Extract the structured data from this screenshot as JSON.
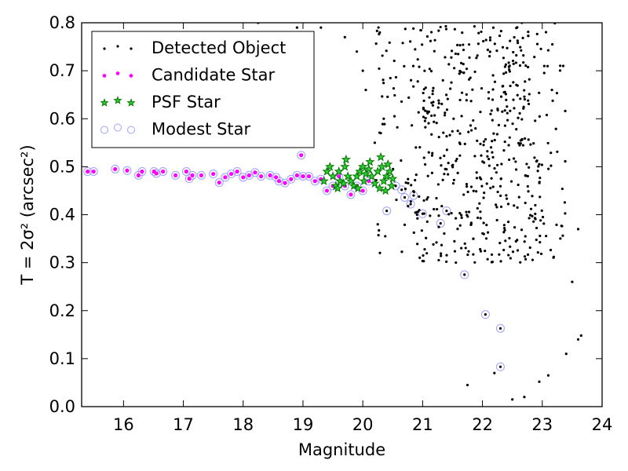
{
  "chart_data": {
    "type": "scatter",
    "xlabel": "Magnitude",
    "ylabel": "T = 2σ² (arcsec²)",
    "xlim": [
      15.3,
      24.0
    ],
    "ylim": [
      0.0,
      0.8
    ],
    "x_ticks": [
      16,
      17,
      18,
      19,
      20,
      21,
      22,
      23,
      24
    ],
    "y_ticks": [
      0.0,
      0.1,
      0.2,
      0.3,
      0.4,
      0.5,
      0.6,
      0.7,
      0.8
    ],
    "grid": false,
    "legend_position": "top-left",
    "colors": {
      "detected": "#000000",
      "candidate": "#ff00ff",
      "psf_edge": "#007700",
      "psf_fill": "#33cc33",
      "modest": "#9f9fff"
    },
    "series": [
      {
        "name": "Detected Object",
        "marker": "dot",
        "points": [
          [
            15.4,
            0.49
          ],
          [
            15.5,
            0.49
          ],
          [
            15.86,
            0.495
          ],
          [
            16.06,
            0.492
          ],
          [
            16.25,
            0.482
          ],
          [
            16.31,
            0.49
          ],
          [
            16.51,
            0.49
          ],
          [
            16.55,
            0.486
          ],
          [
            16.66,
            0.49
          ],
          [
            16.87,
            0.482
          ],
          [
            17.05,
            0.49
          ],
          [
            17.1,
            0.475
          ],
          [
            17.15,
            0.482
          ],
          [
            17.3,
            0.482
          ],
          [
            17.5,
            0.485
          ],
          [
            17.6,
            0.467
          ],
          [
            17.7,
            0.478
          ],
          [
            17.8,
            0.485
          ],
          [
            17.9,
            0.49
          ],
          [
            18.0,
            0.478
          ],
          [
            18.1,
            0.482
          ],
          [
            18.2,
            0.488
          ],
          [
            18.3,
            0.48
          ],
          [
            18.45,
            0.482
          ],
          [
            18.55,
            0.478
          ],
          [
            18.6,
            0.47
          ],
          [
            18.7,
            0.466
          ],
          [
            18.8,
            0.474
          ],
          [
            18.9,
            0.482
          ],
          [
            18.97,
            0.524
          ],
          [
            19.0,
            0.48
          ],
          [
            19.1,
            0.48
          ],
          [
            19.2,
            0.47
          ],
          [
            19.3,
            0.474
          ],
          [
            19.4,
            0.45
          ],
          [
            19.5,
            0.46
          ],
          [
            19.6,
            0.48
          ],
          [
            19.7,
            0.46
          ],
          [
            19.8,
            0.442
          ],
          [
            19.9,
            0.46
          ],
          [
            20.0,
            0.45
          ],
          [
            20.1,
            0.47
          ],
          [
            20.25,
            0.38
          ],
          [
            20.4,
            0.408
          ],
          [
            20.55,
            0.46
          ],
          [
            20.65,
            0.452
          ],
          [
            20.7,
            0.436
          ],
          [
            20.8,
            0.422
          ],
          [
            20.85,
            0.44
          ],
          [
            21.0,
            0.402
          ],
          [
            21.27,
            0.398
          ],
          [
            21.3,
            0.382
          ],
          [
            21.4,
            0.408
          ],
          [
            21.7,
            0.275
          ],
          [
            22.05,
            0.192
          ],
          [
            22.3,
            0.163
          ],
          [
            22.3,
            0.083
          ],
          [
            21.75,
            0.045
          ],
          [
            22.2,
            0.07
          ],
          [
            22.5,
            0.015
          ],
          [
            22.7,
            0.02
          ],
          [
            22.95,
            0.052
          ],
          [
            23.1,
            0.065
          ],
          [
            23.6,
            0.14
          ],
          [
            23.65,
            0.148
          ],
          [
            23.4,
            0.11
          ],
          [
            23.5,
            0.26
          ],
          [
            23.6,
            0.37
          ],
          [
            23.35,
            0.71
          ],
          [
            19.7,
            0.77
          ],
          [
            19.9,
            0.74
          ],
          [
            20.0,
            0.7
          ],
          [
            20.05,
            0.66
          ],
          [
            19.3,
            0.79
          ],
          [
            19.1,
            0.78
          ],
          [
            20.2,
            0.55
          ],
          [
            20.3,
            0.57
          ],
          [
            20.35,
            0.6
          ],
          [
            18.9,
            0.79
          ],
          [
            18.25,
            0.8
          ]
        ],
        "dense_region": {
          "x_range": [
            20.2,
            23.4
          ],
          "y_range": [
            0.3,
            0.8
          ],
          "count": 700,
          "seed": 7
        }
      },
      {
        "name": "Candidate Star",
        "marker": "dot",
        "points": [
          [
            15.4,
            0.49
          ],
          [
            15.5,
            0.49
          ],
          [
            15.86,
            0.495
          ],
          [
            16.06,
            0.492
          ],
          [
            16.25,
            0.482
          ],
          [
            16.31,
            0.49
          ],
          [
            16.51,
            0.49
          ],
          [
            16.55,
            0.486
          ],
          [
            16.66,
            0.49
          ],
          [
            16.87,
            0.482
          ],
          [
            17.05,
            0.49
          ],
          [
            17.1,
            0.475
          ],
          [
            17.15,
            0.482
          ],
          [
            17.3,
            0.482
          ],
          [
            17.5,
            0.485
          ],
          [
            17.6,
            0.467
          ],
          [
            17.7,
            0.478
          ],
          [
            17.8,
            0.485
          ],
          [
            17.9,
            0.49
          ],
          [
            18.0,
            0.478
          ],
          [
            18.1,
            0.482
          ],
          [
            18.2,
            0.488
          ],
          [
            18.3,
            0.48
          ],
          [
            18.45,
            0.482
          ],
          [
            18.55,
            0.478
          ],
          [
            18.6,
            0.47
          ],
          [
            18.7,
            0.466
          ],
          [
            18.8,
            0.474
          ],
          [
            18.9,
            0.482
          ],
          [
            18.97,
            0.524
          ],
          [
            19.0,
            0.48
          ],
          [
            19.1,
            0.48
          ],
          [
            19.2,
            0.47
          ],
          [
            19.3,
            0.474
          ],
          [
            19.4,
            0.45
          ],
          [
            19.5,
            0.46
          ],
          [
            19.6,
            0.48
          ],
          [
            19.7,
            0.46
          ],
          [
            19.8,
            0.442
          ],
          [
            19.9,
            0.46
          ],
          [
            20.0,
            0.45
          ],
          [
            20.1,
            0.47
          ]
        ]
      },
      {
        "name": "PSF Star",
        "marker": "star",
        "points": [
          [
            19.35,
            0.47
          ],
          [
            19.4,
            0.49
          ],
          [
            19.45,
            0.5
          ],
          [
            19.5,
            0.48
          ],
          [
            19.55,
            0.46
          ],
          [
            19.6,
            0.49
          ],
          [
            19.62,
            0.47
          ],
          [
            19.7,
            0.5
          ],
          [
            19.72,
            0.515
          ],
          [
            19.75,
            0.48
          ],
          [
            19.8,
            0.47
          ],
          [
            19.85,
            0.46
          ],
          [
            19.9,
            0.48
          ],
          [
            19.95,
            0.49
          ],
          [
            20.0,
            0.5
          ],
          [
            20.02,
            0.47
          ],
          [
            20.05,
            0.485
          ],
          [
            20.1,
            0.495
          ],
          [
            20.12,
            0.51
          ],
          [
            20.15,
            0.48
          ],
          [
            20.2,
            0.465
          ],
          [
            20.25,
            0.49
          ],
          [
            20.3,
            0.52
          ],
          [
            20.32,
            0.5
          ],
          [
            20.35,
            0.47
          ],
          [
            20.38,
            0.45
          ],
          [
            20.4,
            0.48
          ],
          [
            20.42,
            0.505
          ],
          [
            20.45,
            0.49
          ],
          [
            20.5,
            0.475
          ],
          [
            20.48,
            0.46
          ],
          [
            19.58,
            0.455
          ],
          [
            19.68,
            0.465
          ],
          [
            19.92,
            0.455
          ],
          [
            20.28,
            0.455
          ]
        ]
      },
      {
        "name": "Modest Star",
        "marker": "open-circle",
        "points": [
          [
            15.4,
            0.49
          ],
          [
            15.5,
            0.49
          ],
          [
            15.86,
            0.495
          ],
          [
            16.06,
            0.492
          ],
          [
            16.25,
            0.482
          ],
          [
            16.31,
            0.49
          ],
          [
            16.51,
            0.49
          ],
          [
            16.55,
            0.486
          ],
          [
            16.66,
            0.49
          ],
          [
            16.87,
            0.482
          ],
          [
            17.05,
            0.49
          ],
          [
            17.1,
            0.475
          ],
          [
            17.15,
            0.482
          ],
          [
            17.3,
            0.482
          ],
          [
            17.5,
            0.485
          ],
          [
            17.6,
            0.467
          ],
          [
            17.7,
            0.478
          ],
          [
            17.8,
            0.485
          ],
          [
            17.9,
            0.49
          ],
          [
            18.0,
            0.478
          ],
          [
            18.1,
            0.482
          ],
          [
            18.2,
            0.488
          ],
          [
            18.3,
            0.48
          ],
          [
            18.45,
            0.482
          ],
          [
            18.55,
            0.478
          ],
          [
            18.6,
            0.47
          ],
          [
            18.7,
            0.466
          ],
          [
            18.8,
            0.474
          ],
          [
            18.9,
            0.482
          ],
          [
            18.97,
            0.524
          ],
          [
            19.0,
            0.48
          ],
          [
            19.1,
            0.48
          ],
          [
            19.2,
            0.47
          ],
          [
            19.3,
            0.474
          ],
          [
            19.4,
            0.45
          ],
          [
            19.5,
            0.46
          ],
          [
            19.6,
            0.48
          ],
          [
            19.7,
            0.46
          ],
          [
            19.8,
            0.442
          ],
          [
            19.9,
            0.46
          ],
          [
            20.0,
            0.45
          ],
          [
            20.1,
            0.47
          ],
          [
            20.4,
            0.408
          ],
          [
            20.55,
            0.46
          ],
          [
            20.65,
            0.452
          ],
          [
            20.7,
            0.436
          ],
          [
            20.8,
            0.422
          ],
          [
            20.85,
            0.44
          ],
          [
            21.0,
            0.402
          ],
          [
            21.3,
            0.382
          ],
          [
            21.4,
            0.408
          ],
          [
            21.7,
            0.275
          ],
          [
            22.05,
            0.192
          ],
          [
            22.3,
            0.163
          ],
          [
            22.3,
            0.083
          ]
        ]
      }
    ]
  }
}
